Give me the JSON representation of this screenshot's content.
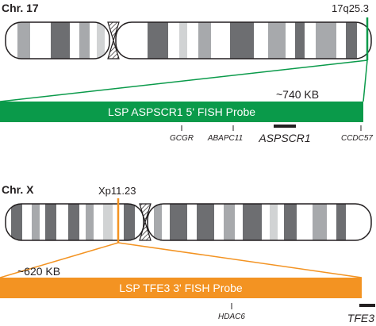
{
  "chr17": {
    "label": "Chr. 17",
    "locus": "17q25.3",
    "probe_size": "~740 KB",
    "probe_label": "LSP ASPSCR1 5' FISH Probe",
    "probe_color": "#0a9a4a",
    "genes": [
      "GCGR",
      "ABAPC11",
      "ASPSCR1",
      "CCDC57"
    ],
    "target_gene": "ASPSCR1"
  },
  "chrX": {
    "label": "Chr. X",
    "locus": "Xp11.23",
    "probe_size": "~620 KB",
    "probe_label": "LSP TFE3 3' FISH Probe",
    "probe_color": "#f39322",
    "genes": [
      "HDAC6",
      "TFE3"
    ],
    "target_gene": "TFE3"
  },
  "colors": {
    "text": "#231f20",
    "band_dark": "#6d6e71",
    "band_mid": "#a7a9ac",
    "band_light": "#d1d3d4",
    "outline": "#231f20"
  }
}
